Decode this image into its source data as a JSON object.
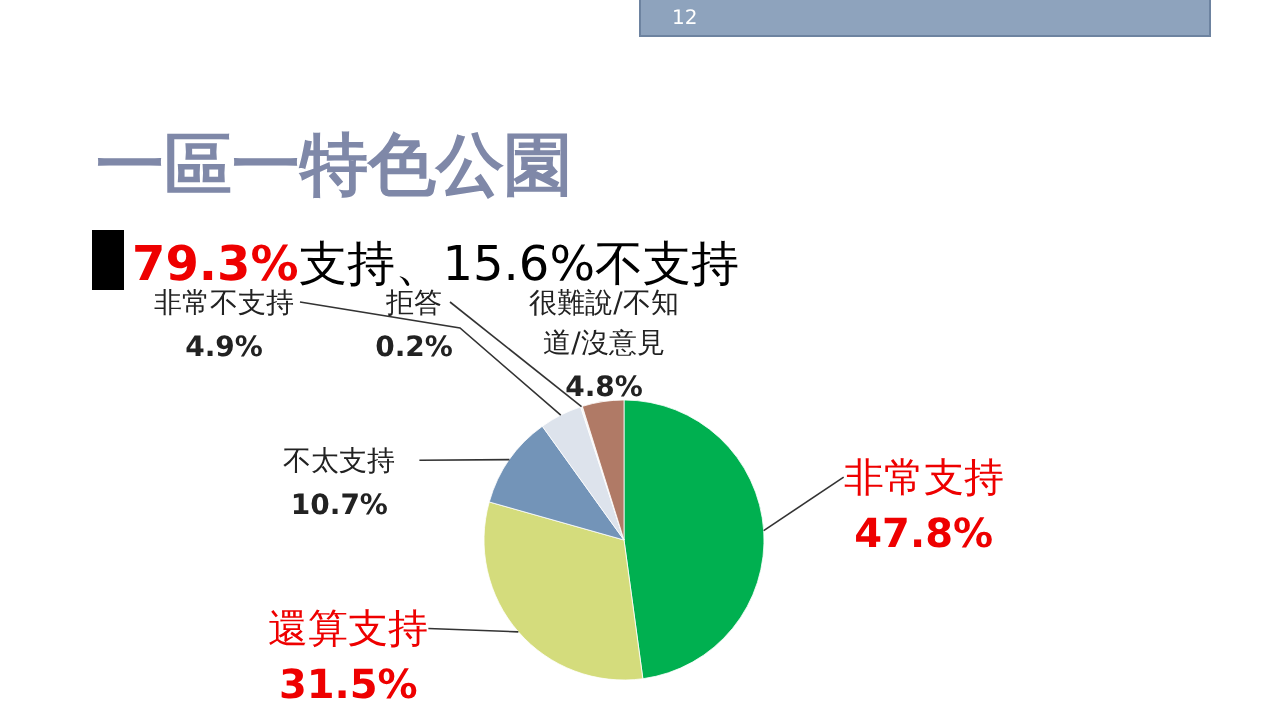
{
  "chart_data": {
    "type": "pie",
    "title": "一區一特色公園",
    "subtitle": "79.3%支持、15.6%不支持",
    "categories": [
      "非常支持",
      "還算支持",
      "不太支持",
      "非常不支持",
      "拒答",
      "很難說/不知道/沒意見"
    ],
    "values": [
      47.8,
      31.5,
      10.7,
      4.9,
      0.2,
      4.8
    ],
    "colors": [
      "#00b050",
      "#d4dc7c",
      "#7394b8",
      "#dde3ec",
      "#f2f2f2",
      "#b07a66"
    ],
    "value_labels": [
      "47.8%",
      "31.5%",
      "10.7%",
      "4.9%",
      "0.2%",
      "4.8%"
    ],
    "annotations": [
      "12"
    ]
  }
}
